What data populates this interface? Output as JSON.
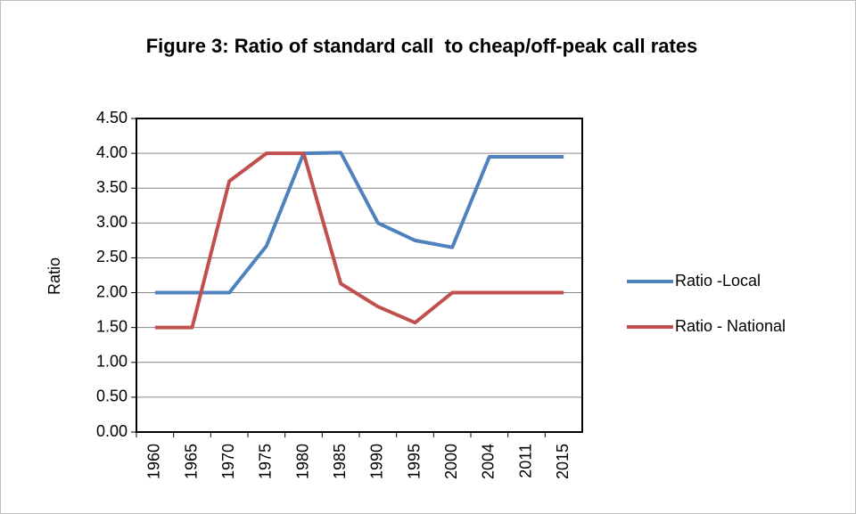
{
  "chart_data": {
    "type": "line",
    "title": "Figure 3: Ratio of standard call  to cheap/off-peak call rates",
    "y_label": "Ratio",
    "categories": [
      "1960",
      "1965",
      "1970",
      "1975",
      "1980",
      "1985",
      "1990",
      "1995",
      "2000",
      "2004",
      "2011",
      "2015"
    ],
    "series": [
      {
        "name": "Ratio -Local",
        "color": "#4f81bd",
        "values": [
          2.0,
          2.0,
          2.0,
          2.67,
          4.0,
          4.01,
          3.0,
          2.75,
          2.65,
          3.95,
          3.95,
          3.95
        ]
      },
      {
        "name": "Ratio - National",
        "color": "#c0504d",
        "values": [
          1.5,
          1.5,
          3.6,
          4.0,
          4.0,
          2.13,
          1.8,
          1.57,
          2.0,
          2.0,
          2.0,
          2.0
        ]
      }
    ],
    "ylim": [
      0,
      4.5
    ],
    "yticks": [
      {
        "value": 0,
        "label": "0.00"
      },
      {
        "value": 0.5,
        "label": "0.50"
      },
      {
        "value": 1,
        "label": "1.00"
      },
      {
        "value": 1.5,
        "label": "1.50"
      },
      {
        "value": 2,
        "label": "2.00"
      },
      {
        "value": 2.5,
        "label": "2.50"
      },
      {
        "value": 3,
        "label": "3.00"
      },
      {
        "value": 3.5,
        "label": "3.50"
      },
      {
        "value": 4,
        "label": "4.00"
      },
      {
        "value": 4.5,
        "label": "4.50"
      }
    ],
    "grid": true,
    "legend": "right"
  }
}
